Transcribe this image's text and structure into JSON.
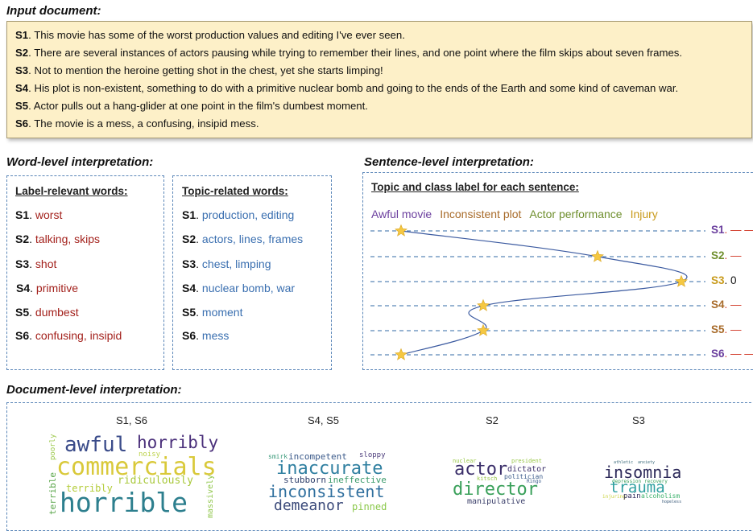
{
  "input": {
    "title": "Input document:",
    "sentences": [
      {
        "id": "S1",
        "text": ". This movie has some of the worst production values and editing I've ever seen."
      },
      {
        "id": "S2",
        "text": ". There are several instances of actors pausing while trying to remember their lines,  and one point where the film skips about seven frames."
      },
      {
        "id": "S3",
        "text": ". Not to mention the heroine getting shot in the chest, yet she starts limping!"
      },
      {
        "id": "S4",
        "text": ". His plot is non-existent, something to do with a primitive nuclear bomb and going to the ends of the Earth and some kind of caveman war."
      },
      {
        "id": "S5",
        "text": ". Actor pulls out a hang-glider at one point in the film's dumbest moment."
      },
      {
        "id": "S6",
        "text": ". The movie is a mess, a confusing, insipid mess."
      }
    ]
  },
  "word_level": {
    "title": "Word-level interpretation:",
    "label_header": "Label-relevant words:",
    "topic_header": "Topic-related words:",
    "label_rows": [
      {
        "id": "S1",
        "words": "worst"
      },
      {
        "id": "S2",
        "words": "talking, skips"
      },
      {
        "id": "S3",
        "words": "shot"
      },
      {
        "id": "S4",
        "words": "primitive"
      },
      {
        "id": "S5",
        "words": "dumbest"
      },
      {
        "id": "S6",
        "words": "confusing, insipid"
      }
    ],
    "topic_rows": [
      {
        "id": "S1",
        "words": "production, editing"
      },
      {
        "id": "S2",
        "words": "actors, lines, frames"
      },
      {
        "id": "S3",
        "words": "chest, limping"
      },
      {
        "id": "S4",
        "words": "nuclear bomb, war"
      },
      {
        "id": "S5",
        "words": "moment"
      },
      {
        "id": "S6",
        "words": "mess"
      }
    ]
  },
  "sentence_level": {
    "title": "Sentence-level interpretation:",
    "header": "Topic and class label for each sentence:",
    "topics": [
      {
        "label": "Awful movie",
        "color": "#6b3f9e"
      },
      {
        "label": "Inconsistent plot",
        "color": "#a86b2a"
      },
      {
        "label": "Actor performance",
        "color": "#6f8f2e"
      },
      {
        "label": "Injury",
        "color": "#c89a1a"
      }
    ],
    "rows": [
      {
        "id": "S1",
        "topic_index": 0,
        "suffix": ". — —",
        "color": "#6b3f9e",
        "suffix_color": "#d23a2a"
      },
      {
        "id": "S2",
        "topic_index": 2,
        "suffix": ". —",
        "color": "#6f8f2e",
        "suffix_color": "#d23a2a"
      },
      {
        "id": "S3",
        "topic_index": 3,
        "suffix": ". 0",
        "color": "#c89a1a",
        "suffix_color": "#111111"
      },
      {
        "id": "S4",
        "topic_index": 1,
        "suffix": ". —",
        "color": "#a86b2a",
        "suffix_color": "#d23a2a"
      },
      {
        "id": "S5",
        "topic_index": 1,
        "suffix": ". —",
        "color": "#a86b2a",
        "suffix_color": "#d23a2a"
      },
      {
        "id": "S6",
        "topic_index": 0,
        "suffix": ". — —",
        "color": "#6b3f9e",
        "suffix_color": "#d23a2a"
      }
    ]
  },
  "document_level": {
    "title": "Document-level interpretation:",
    "clouds": [
      {
        "label": "S1, S6",
        "words": [
          "awful",
          "horribly",
          "commercials",
          "noisy",
          "poorly",
          "ridiculously",
          "terribly",
          "terrible",
          "horrible",
          "massively"
        ]
      },
      {
        "label": "S4, S5",
        "words": [
          "smirk",
          "incompetent",
          "sloppy",
          "inaccurate",
          "stubborn",
          "ineffective",
          "inconsistent",
          "demeanor",
          "pinned"
        ]
      },
      {
        "label": "S2",
        "words": [
          "nuclear",
          "president",
          "actor",
          "dictator",
          "kitsch",
          "politician",
          "Ringo",
          "director",
          "manipulative"
        ]
      },
      {
        "label": "S3",
        "words": [
          "athletic",
          "anxiety",
          "insomnia",
          "depression",
          "recovery",
          "trauma",
          "injuring",
          "pain",
          "alcoholism",
          "hopeless"
        ]
      }
    ]
  },
  "colors": {
    "input_bg": "#fdf0c8",
    "dashed_border": "#5a86b8",
    "label_word": "#a3211c",
    "topic_word": "#3a6fb0",
    "star": "#f5c842"
  }
}
